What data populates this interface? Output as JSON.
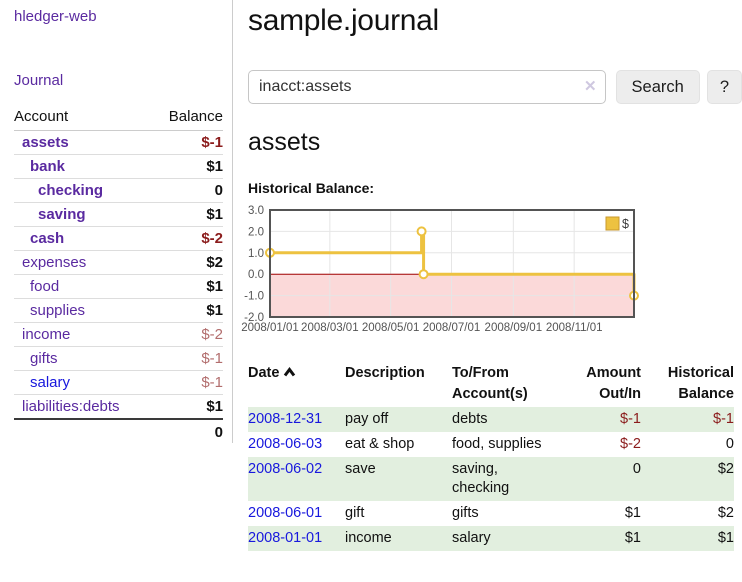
{
  "app": {
    "brand": "hledger-web",
    "nav_journal": "Journal"
  },
  "sidebar": {
    "accounts": {
      "col_account": "Account",
      "col_balance": "Balance",
      "rows": [
        {
          "name": "assets",
          "depth": 1,
          "bold": true,
          "balance": "$-1",
          "negative": true,
          "unvisited": false
        },
        {
          "name": "bank",
          "depth": 2,
          "bold": true,
          "balance": "$1",
          "negative": false,
          "unvisited": false
        },
        {
          "name": "checking",
          "depth": 3,
          "bold": true,
          "balance": "0",
          "negative": false,
          "unvisited": false
        },
        {
          "name": "saving",
          "depth": 3,
          "bold": true,
          "balance": "$1",
          "negative": false,
          "unvisited": false
        },
        {
          "name": "cash",
          "depth": 2,
          "bold": true,
          "balance": "$-2",
          "negative": true,
          "unvisited": false
        },
        {
          "name": "expenses",
          "depth": 1,
          "bold": false,
          "balance": "$2",
          "negative": false,
          "unvisited": false
        },
        {
          "name": "food",
          "depth": 2,
          "bold": false,
          "balance": "$1",
          "negative": false,
          "unvisited": false
        },
        {
          "name": "supplies",
          "depth": 2,
          "bold": false,
          "balance": "$1",
          "negative": false,
          "unvisited": false
        },
        {
          "name": "income",
          "depth": 1,
          "bold": false,
          "balance": "$-2",
          "negative": true,
          "unvisited": false
        },
        {
          "name": "gifts",
          "depth": 2,
          "bold": false,
          "balance": "$-1",
          "negative": true,
          "unvisited": false
        },
        {
          "name": "salary",
          "depth": 2,
          "bold": false,
          "balance": "$-1",
          "negative": true,
          "unvisited": true
        },
        {
          "name": "liabilities:debts",
          "depth": 1,
          "bold": false,
          "balance": "$1",
          "negative": false,
          "unvisited": false
        }
      ],
      "total": "0"
    }
  },
  "header": {
    "title": "sample.journal"
  },
  "search": {
    "value": "inacct:assets",
    "clear_glyph": "✕",
    "search_button": "Search",
    "help_button": "?"
  },
  "account_page": {
    "heading": "assets",
    "chart_title": "Historical Balance:"
  },
  "chart_data": {
    "type": "line",
    "step": true,
    "title": "Historical Balance",
    "series_label": "$",
    "line_color": "#edc240",
    "x_range_days": [
      0,
      365
    ],
    "y_range": [
      -2,
      3
    ],
    "y_ticks": [
      "3.0",
      "2.0",
      "1.0",
      "0.0",
      "-1.0",
      "-2.0"
    ],
    "y_tick_values": [
      3,
      2,
      1,
      0,
      -1,
      -2
    ],
    "x_ticks": [
      {
        "label": "2008/01/01",
        "day": 0
      },
      {
        "label": "2008/03/01",
        "day": 60
      },
      {
        "label": "2008/05/01",
        "day": 121
      },
      {
        "label": "2008/07/01",
        "day": 182
      },
      {
        "label": "2008/09/01",
        "day": 244
      },
      {
        "label": "2008/11/01",
        "day": 305
      }
    ],
    "points": [
      {
        "date": "2008-01-01",
        "day": 0,
        "value": 1
      },
      {
        "date": "2008-06-01",
        "day": 152,
        "value": 2
      },
      {
        "date": "2008-06-03",
        "day": 154,
        "value": 0
      },
      {
        "date": "2008-12-31",
        "day": 365,
        "value": -1
      }
    ],
    "negative_region_fill": "#fbd9d9",
    "zero_line_color": "#a40000",
    "grid_color": "#e6e6e6",
    "border_color": "#545454",
    "tick_color": "#545454",
    "legend_position": "top-right",
    "grid": true
  },
  "transactions": {
    "headers": {
      "date": "Date",
      "description": "Description",
      "accounts": "To/From Account(s)",
      "amount": "Amount Out/In",
      "balance": "Historical Balance"
    },
    "rows": [
      {
        "date": "2008-12-31",
        "description": "pay off",
        "accounts": "debts",
        "amount": "$-1",
        "amount_negative": true,
        "balance": "$-1",
        "balance_negative": true
      },
      {
        "date": "2008-06-03",
        "description": "eat & shop",
        "accounts": "food, supplies",
        "amount": "$-2",
        "amount_negative": true,
        "balance": "0",
        "balance_negative": false
      },
      {
        "date": "2008-06-02",
        "description": "save",
        "accounts": "saving, checking",
        "amount": "0",
        "amount_negative": false,
        "balance": "$2",
        "balance_negative": false
      },
      {
        "date": "2008-06-01",
        "description": "gift",
        "accounts": "gifts",
        "amount": "$1",
        "amount_negative": false,
        "balance": "$2",
        "balance_negative": false
      },
      {
        "date": "2008-01-01",
        "description": "income",
        "accounts": "salary",
        "amount": "$1",
        "amount_negative": false,
        "balance": "$1",
        "balance_negative": false
      }
    ]
  }
}
